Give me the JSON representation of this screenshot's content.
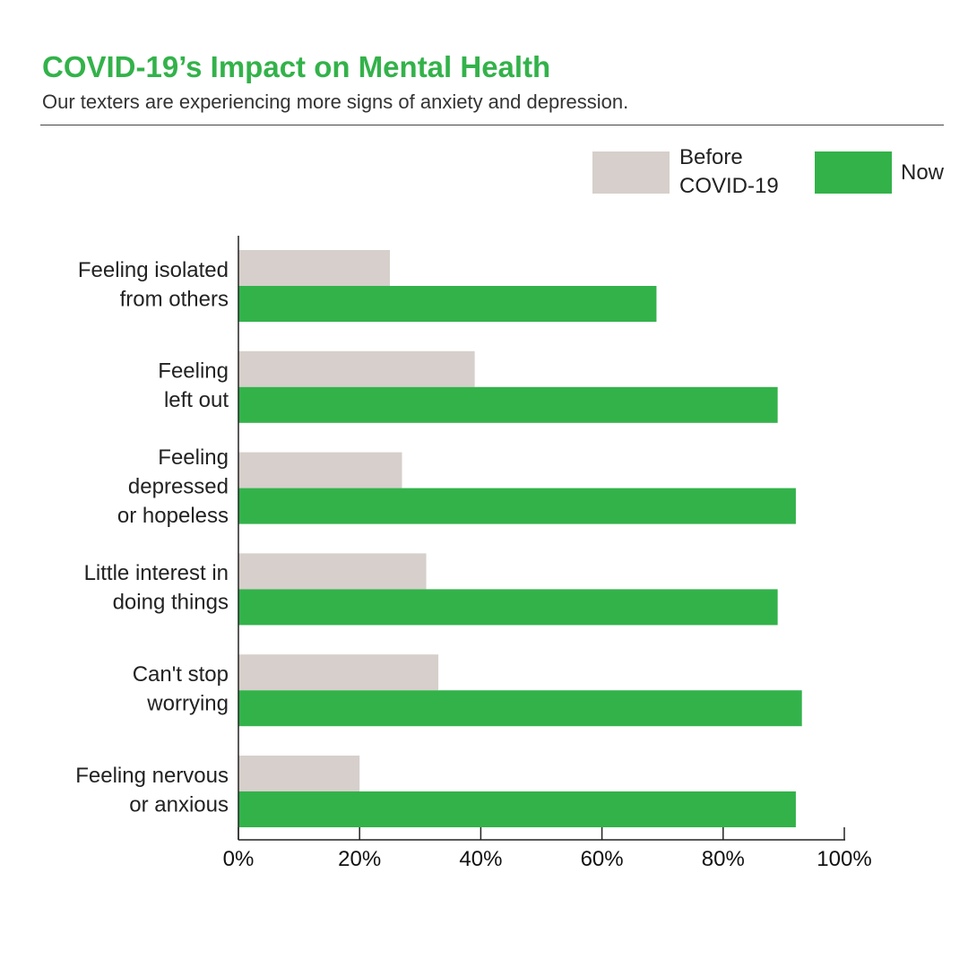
{
  "title": "COVID-19’s Impact on Mental Health",
  "subtitle": "Our texters are experiencing more signs of anxiety and depression.",
  "colors": {
    "before": "#d6cfcb",
    "now": "#33b24a",
    "title": "#33b24a",
    "axis": "#222222"
  },
  "chart_data": {
    "type": "bar",
    "orientation": "horizontal",
    "title": "COVID-19’s Impact on Mental Health",
    "subtitle": "Our texters are experiencing more signs of anxiety and depression.",
    "categories": [
      [
        "Feeling isolated",
        "from others"
      ],
      [
        "Feeling",
        "left out"
      ],
      [
        "Feeling",
        "depressed",
        "or hopeless"
      ],
      [
        "Little interest in",
        "doing things"
      ],
      [
        "Can't stop",
        "worrying"
      ],
      [
        "Feeling nervous",
        "or anxious"
      ]
    ],
    "series": [
      {
        "name": "Before COVID-19",
        "legend_lines": [
          "Before",
          "COVID-19"
        ],
        "values": [
          25,
          39,
          27,
          31,
          33,
          20
        ],
        "color": "#d6cfcb"
      },
      {
        "name": "Now",
        "legend_lines": [
          "Now"
        ],
        "values": [
          69,
          89,
          92,
          89,
          93,
          92
        ],
        "color": "#33b24a"
      }
    ],
    "xlim": [
      0,
      100
    ],
    "xticks": [
      0,
      20,
      40,
      60,
      80,
      100
    ],
    "xtick_labels": [
      "0%",
      "20%",
      "40%",
      "60%",
      "80%",
      "100%"
    ],
    "grid": false,
    "legend_position": "top-right"
  }
}
